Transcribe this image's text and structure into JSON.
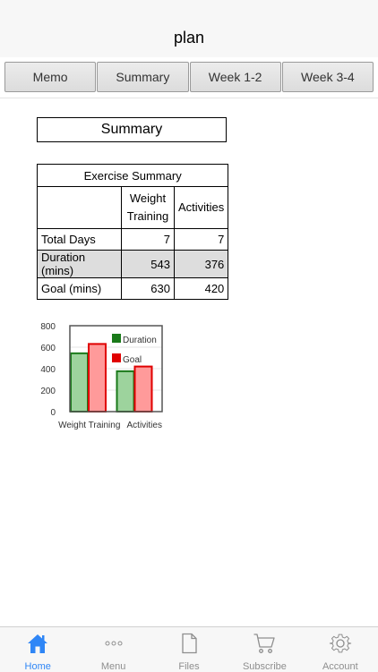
{
  "navbar": {
    "title": "plan"
  },
  "segments": [
    "Memo",
    "Summary",
    "Week 1-2",
    "Week 3-4"
  ],
  "section_title": "Summary",
  "table": {
    "caption": "Exercise Summary",
    "headers": [
      "Weight Training",
      "Activities"
    ],
    "rows": [
      {
        "label": "Total Days",
        "values": [
          "7",
          "7"
        ]
      },
      {
        "label": "Duration (mins)",
        "values": [
          "543",
          "376"
        ]
      },
      {
        "label": "Goal (mins)",
        "values": [
          "630",
          "420"
        ]
      }
    ]
  },
  "chart_data": {
    "type": "bar",
    "categories": [
      "Weight Training",
      "Activities"
    ],
    "series": [
      {
        "name": "Duration",
        "values": [
          543,
          376
        ],
        "color": "#1a7a1a",
        "fill": "#9dd39d"
      },
      {
        "name": "Goal",
        "values": [
          630,
          420
        ],
        "color": "#e00000",
        "fill": "#ff9a9a"
      }
    ],
    "yticks": [
      "0",
      "200",
      "400",
      "600",
      "800"
    ],
    "ylim": [
      0,
      800
    ],
    "legend_position": "top-right",
    "grid": true
  },
  "tabs": [
    {
      "label": "Home",
      "icon": "home-icon",
      "active": true
    },
    {
      "label": "Menu",
      "icon": "more-dots-icon",
      "active": false
    },
    {
      "label": "Files",
      "icon": "file-icon",
      "active": false
    },
    {
      "label": "Subscribe",
      "icon": "cart-icon",
      "active": false
    },
    {
      "label": "Account",
      "icon": "gear-icon",
      "active": false
    }
  ],
  "colors": {
    "accent": "#2f86f6",
    "inactive": "#8e8e8e"
  }
}
